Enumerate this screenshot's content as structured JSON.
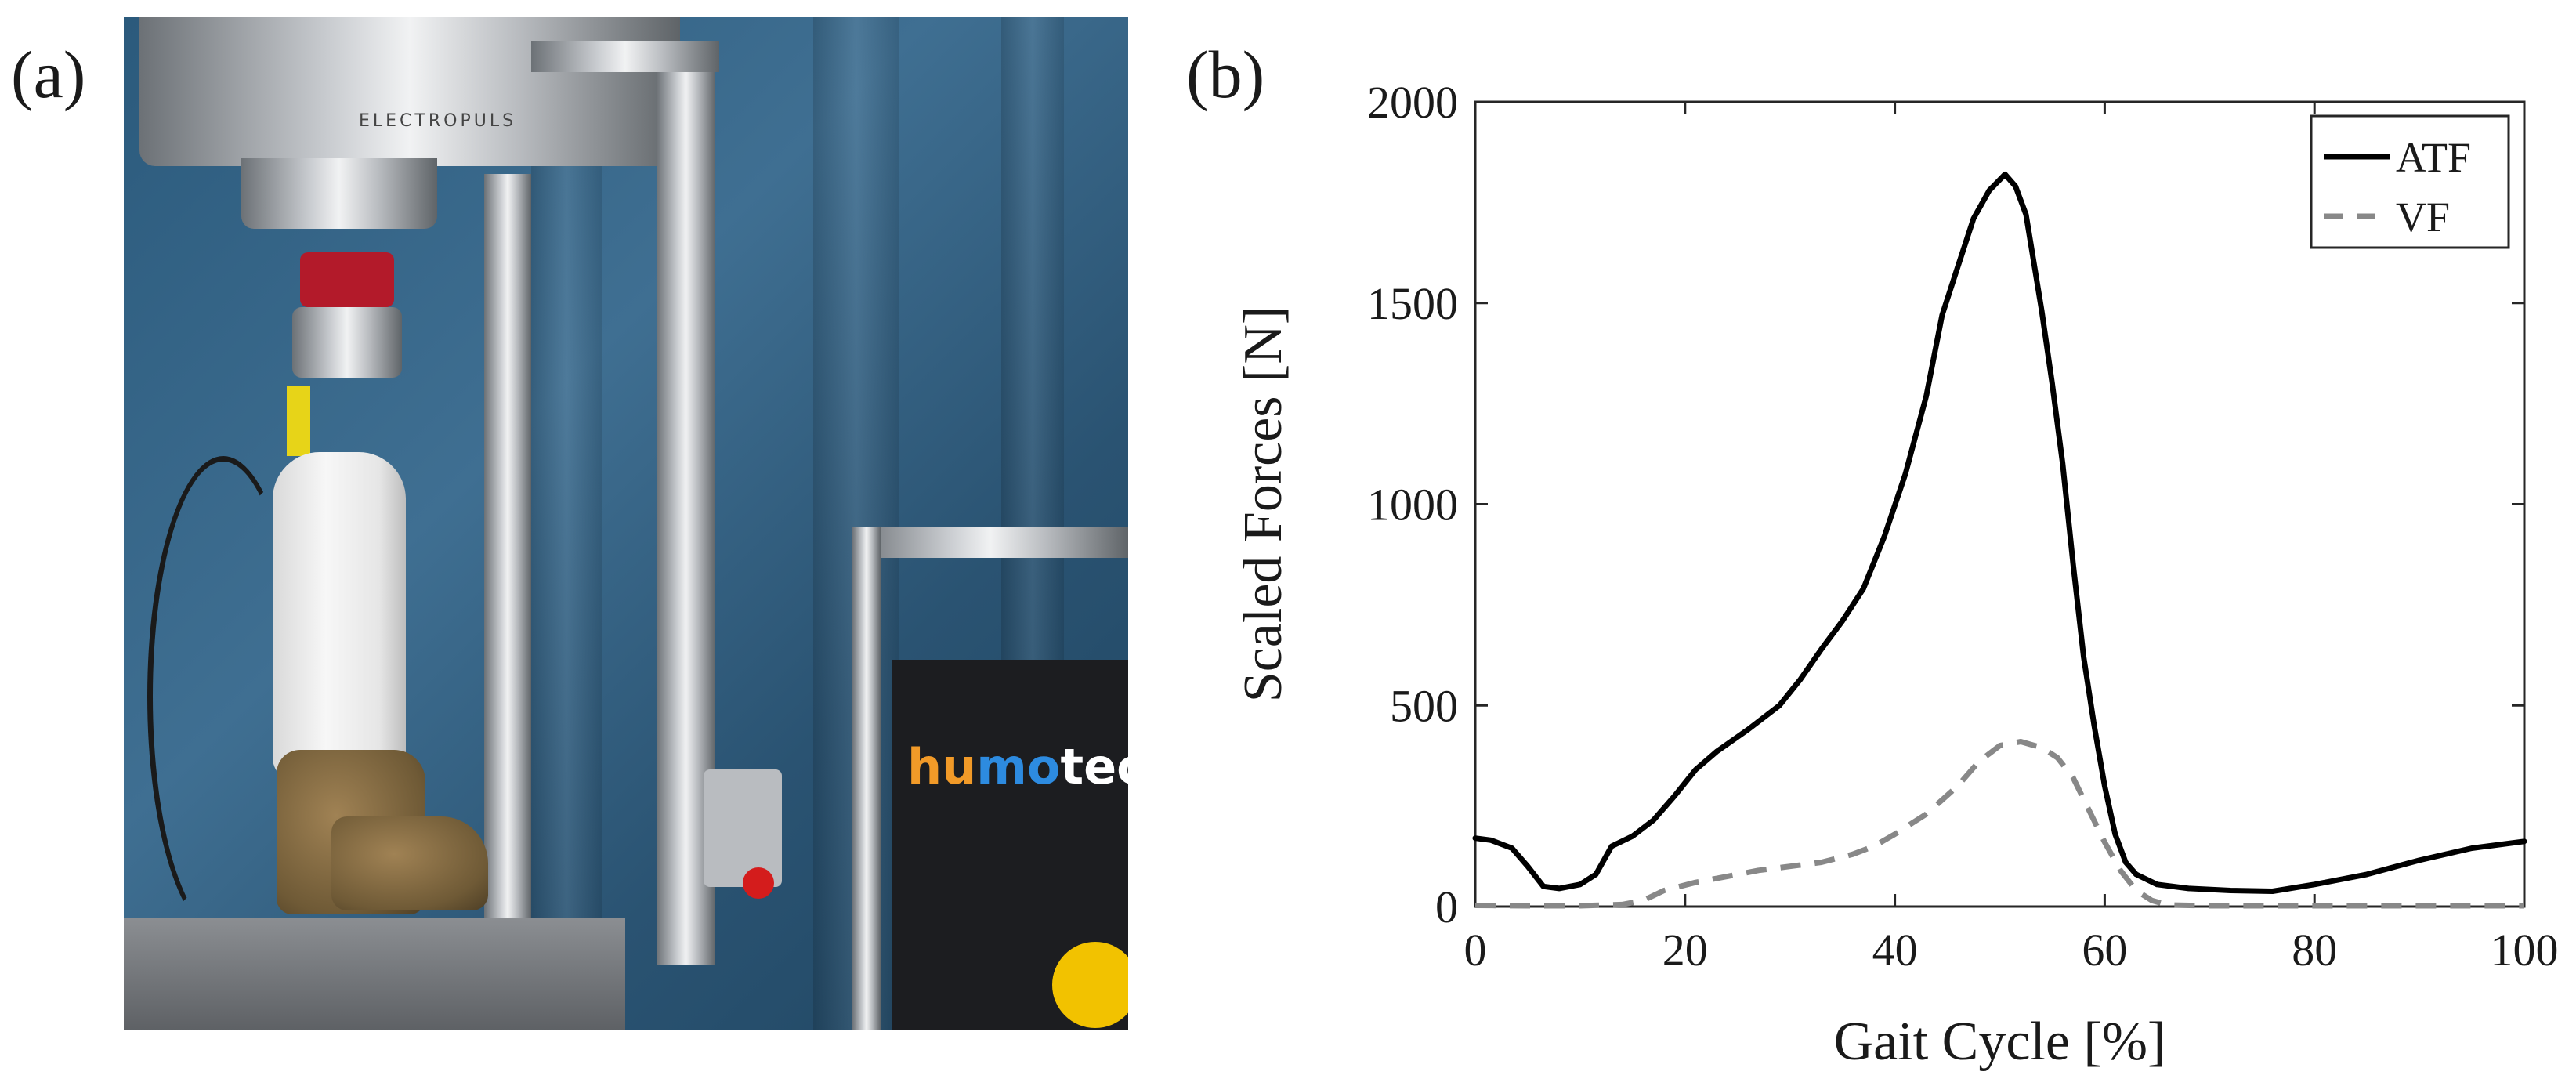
{
  "figure": {
    "panel_a_label": "(a)",
    "panel_b_label": "(b)"
  },
  "photo": {
    "description_icon": "test-rig-photo-icon",
    "brand_text_part1": "hu",
    "brand_text_part2": "mo",
    "brand_text_part3": "tech",
    "machine_text": "ELECTROPULS",
    "colors": {
      "curtain": "#2f6185",
      "frame": "#c9ccd0",
      "boot": "#8d7147",
      "brand_blue": "#2d8be0",
      "brand_orange": "#f19a28"
    }
  },
  "chart_data": {
    "type": "line",
    "title": "",
    "xlabel": "Gait Cycle [%]",
    "ylabel": "Scaled Forces [N]",
    "xlim": [
      0,
      100
    ],
    "ylim": [
      0,
      2000
    ],
    "xticks": [
      0,
      20,
      40,
      60,
      80,
      100
    ],
    "yticks": [
      0,
      500,
      1000,
      1500,
      2000
    ],
    "xtick_labels": [
      "0",
      "20",
      "40",
      "60",
      "80",
      "100"
    ],
    "ytick_labels": [
      "0",
      "500",
      "1000",
      "1500",
      "2000"
    ],
    "legend_position": "top-right",
    "grid": false,
    "series": [
      {
        "name": "ATF",
        "style": "solid",
        "color": "#000000",
        "x": [
          0,
          1.5,
          3.5,
          5,
          6.5,
          8,
          10,
          11.5,
          13,
          15,
          17,
          19,
          21,
          23,
          26,
          29,
          31,
          33,
          35,
          37,
          39,
          41,
          43,
          44.5,
          46,
          47.5,
          49,
          50.5,
          51.5,
          52.5,
          54,
          55,
          56,
          57,
          58,
          59,
          60,
          61,
          62,
          63,
          65,
          68,
          72,
          76,
          80,
          85,
          90,
          95,
          100
        ],
        "y": [
          170,
          165,
          145,
          100,
          50,
          45,
          55,
          80,
          150,
          175,
          215,
          275,
          340,
          385,
          440,
          500,
          565,
          640,
          710,
          790,
          920,
          1075,
          1270,
          1470,
          1590,
          1710,
          1780,
          1820,
          1790,
          1720,
          1480,
          1300,
          1100,
          850,
          620,
          450,
          300,
          180,
          110,
          80,
          55,
          45,
          40,
          38,
          55,
          80,
          115,
          145,
          162
        ]
      },
      {
        "name": "VF",
        "style": "dashed",
        "color": "#888888",
        "x": [
          0,
          5,
          10,
          14,
          16,
          18,
          21,
          24,
          27,
          30,
          33,
          36,
          38,
          40,
          43,
          46,
          48,
          50,
          52,
          54,
          55.5,
          57,
          58.5,
          60,
          61.5,
          63,
          64.5,
          66,
          70,
          80,
          90,
          100
        ],
        "y": [
          3,
          2,
          2,
          5,
          15,
          40,
          60,
          75,
          90,
          100,
          110,
          130,
          150,
          180,
          230,
          300,
          360,
          400,
          410,
          395,
          370,
          320,
          240,
          160,
          90,
          40,
          15,
          4,
          2,
          2,
          2,
          2
        ]
      }
    ]
  }
}
